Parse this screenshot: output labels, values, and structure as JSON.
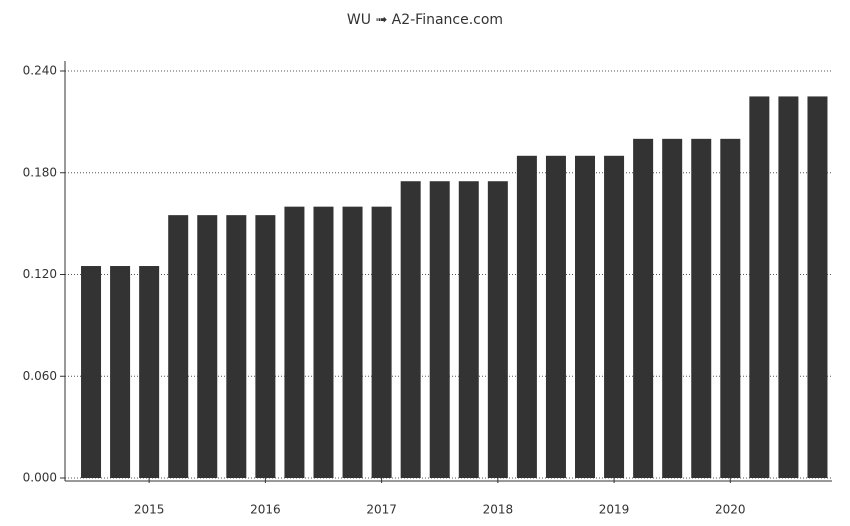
{
  "chart_data": {
    "type": "bar",
    "title": "WU ➟ A2-Finance.com",
    "categories": [
      null,
      null,
      "2015",
      null,
      null,
      null,
      "2016",
      null,
      null,
      null,
      "2017",
      null,
      null,
      null,
      "2018",
      null,
      null,
      null,
      "2019",
      null,
      null,
      null,
      "2020",
      null,
      null,
      null
    ],
    "values": [
      0.125,
      0.125,
      0.125,
      0.155,
      0.155,
      0.155,
      0.155,
      0.16,
      0.16,
      0.16,
      0.16,
      0.175,
      0.175,
      0.175,
      0.175,
      0.19,
      0.19,
      0.19,
      0.19,
      0.2,
      0.2,
      0.2,
      0.2,
      0.225,
      0.225,
      0.225
    ],
    "color": "#333333",
    "ylim": [
      0,
      0.24
    ],
    "yticks": [
      {
        "value": 0,
        "label": "0.000"
      },
      {
        "value": 0.06,
        "label": "0.060"
      },
      {
        "value": 0.12,
        "label": "0.120"
      },
      {
        "value": 0.18,
        "label": "0.180"
      },
      {
        "value": 0.24,
        "label": "0.240"
      }
    ],
    "grid": true
  }
}
